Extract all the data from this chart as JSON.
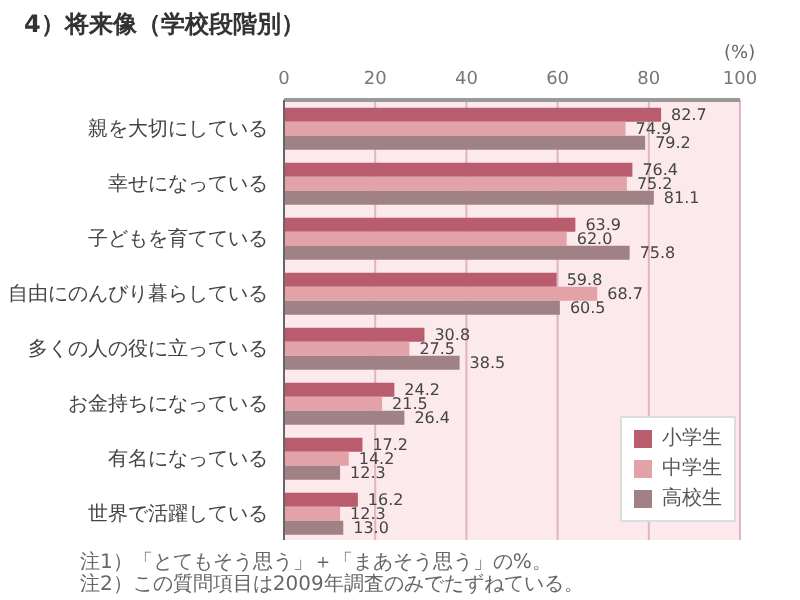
{
  "chart_data": {
    "type": "bar",
    "orientation": "horizontal",
    "title": "4）将来像（学校段階別）",
    "xlabel": "(%)",
    "categories": [
      "親を大切にしている",
      "幸せになっている",
      "子どもを育てている",
      "自由にのんびり暮らしている",
      "多くの人の役に立っている",
      "お金持ちになっている",
      "有名になっている",
      "世界で活躍している"
    ],
    "series": [
      {
        "name": "小学生",
        "color": "#b85c6e",
        "values": [
          82.7,
          76.4,
          63.9,
          59.8,
          30.8,
          24.2,
          17.2,
          16.2
        ],
        "value_labels": [
          "82.7",
          "76.4",
          "63.9",
          "59.8",
          "30.8",
          "24.2",
          "17.2",
          "16.2"
        ]
      },
      {
        "name": "中学生",
        "color": "#e3a1a8",
        "values": [
          74.9,
          75.2,
          62.0,
          68.7,
          27.5,
          21.5,
          14.2,
          12.3
        ],
        "value_labels": [
          "74.9",
          "75.2",
          "62.0",
          "68.7",
          "27.5",
          "21.5",
          "14.2",
          "12.3"
        ]
      },
      {
        "name": "高校生",
        "color": "#a08286",
        "values": [
          79.2,
          81.1,
          75.8,
          60.5,
          38.5,
          26.4,
          12.3,
          13.0
        ],
        "value_labels": [
          "79.2",
          "81.1",
          "75.8",
          "60.5",
          "38.5",
          "26.4",
          "12.3",
          "13.0"
        ]
      }
    ],
    "xlim": [
      0,
      100
    ],
    "xticks": [
      0,
      20,
      40,
      60,
      80,
      100
    ],
    "grid": "x",
    "legend": "bottom right",
    "annotations": [
      "注1）「とてもそう思う」＋「まあそう思う」の%。",
      "注2）この質問項目は2009年調査のみでたずねている。"
    ]
  }
}
